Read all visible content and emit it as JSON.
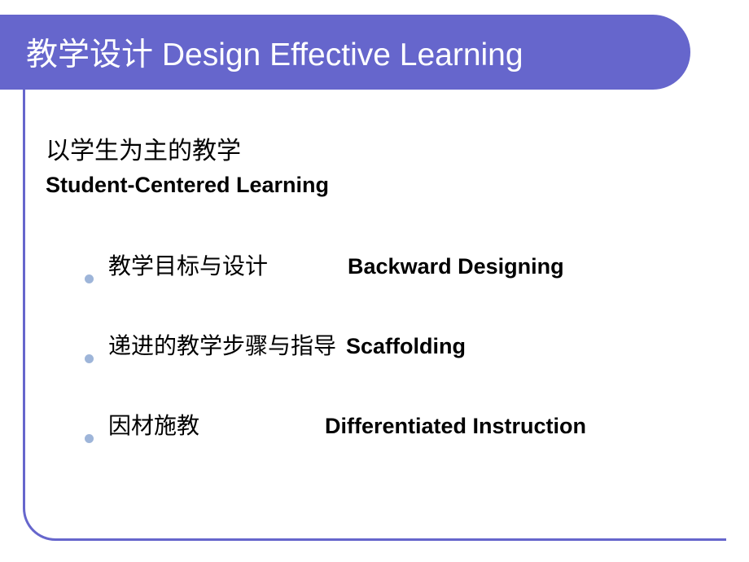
{
  "colors": {
    "primary": "#6666cc",
    "bullet": "#9eb5d9",
    "text": "#000000",
    "header_text": "#ffffff",
    "background": "#ffffff"
  },
  "typography": {
    "title_fontsize": 39,
    "subtitle_cn_fontsize": 30,
    "subtitle_en_fontsize": 27,
    "item_fontsize": 28,
    "item_en_fontsize": 27
  },
  "header": {
    "title": "教学设计   Design Effective Learning"
  },
  "subtitle": {
    "cn": "以学生为主的教学",
    "en": "Student-Centered Learning"
  },
  "items": [
    {
      "cn": "教学目标与设计",
      "en": "Backward Designing",
      "gap_class": "gap-1"
    },
    {
      "cn": "递进的教学步骤与指导",
      "en": "Scaffolding",
      "gap_class": "gap-2"
    },
    {
      "cn": "因材施教",
      "en": "Differentiated Instruction",
      "gap_class": "gap-3"
    }
  ]
}
